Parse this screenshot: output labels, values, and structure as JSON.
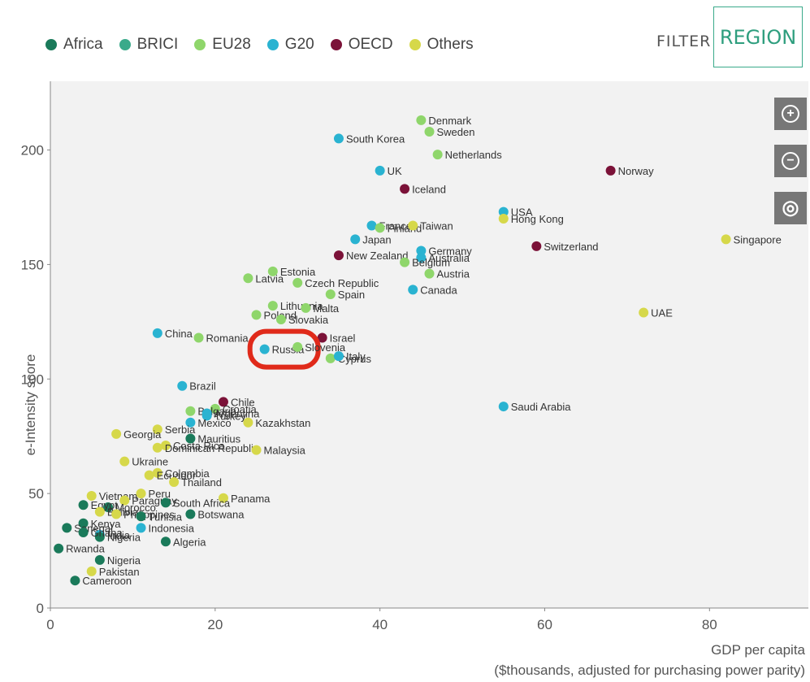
{
  "legend": [
    {
      "label": "Africa",
      "color": "#1a7a5a"
    },
    {
      "label": "BRICI",
      "color": "#3aaa8a"
    },
    {
      "label": "EU28",
      "color": "#8fd66b"
    },
    {
      "label": "G20",
      "color": "#2ab3d1"
    },
    {
      "label": "OECD",
      "color": "#7b1238"
    },
    {
      "label": "Others",
      "color": "#d6d84a"
    }
  ],
  "filter_label": "FILTER",
  "region_button": "REGION",
  "zoom": {
    "in_icon": "+",
    "out_icon": "−",
    "reset_icon": "◎"
  },
  "chart_data": {
    "type": "scatter",
    "xlabel": "GDP per capita",
    "xlabel_note": "($thousands, adjusted for purchasing power parity)",
    "ylabel": "e-Intensity score",
    "xlim": [
      0,
      92
    ],
    "ylim": [
      0,
      230
    ],
    "xticks": [
      0,
      20,
      40,
      60,
      80
    ],
    "yticks": [
      0,
      50,
      100,
      150,
      200
    ],
    "highlight": "Russia",
    "points": [
      {
        "label": "Denmark",
        "x": 45,
        "y": 213,
        "group": "EU28"
      },
      {
        "label": "Sweden",
        "x": 46,
        "y": 208,
        "group": "EU28"
      },
      {
        "label": "South Korea",
        "x": 35,
        "y": 205,
        "group": "G20"
      },
      {
        "label": "Netherlands",
        "x": 47,
        "y": 198,
        "group": "EU28"
      },
      {
        "label": "UK",
        "x": 40,
        "y": 191,
        "group": "G20"
      },
      {
        "label": "Norway",
        "x": 68,
        "y": 191,
        "group": "OECD"
      },
      {
        "label": "Iceland",
        "x": 43,
        "y": 183,
        "group": "OECD"
      },
      {
        "label": "France",
        "x": 39,
        "y": 167,
        "group": "G20"
      },
      {
        "label": "Finland",
        "x": 40,
        "y": 166,
        "group": "EU28"
      },
      {
        "label": "Taiwan",
        "x": 44,
        "y": 167,
        "group": "Others"
      },
      {
        "label": "USA",
        "x": 55,
        "y": 173,
        "group": "G20"
      },
      {
        "label": "Hong Kong",
        "x": 55,
        "y": 170,
        "group": "Others"
      },
      {
        "label": "Japan",
        "x": 37,
        "y": 161,
        "group": "G20"
      },
      {
        "label": "Switzerland",
        "x": 59,
        "y": 158,
        "group": "OECD"
      },
      {
        "label": "Singapore",
        "x": 82,
        "y": 161,
        "group": "Others"
      },
      {
        "label": "New Zealand",
        "x": 35,
        "y": 154,
        "group": "OECD"
      },
      {
        "label": "Germany",
        "x": 45,
        "y": 156,
        "group": "G20"
      },
      {
        "label": "Australia",
        "x": 45,
        "y": 153,
        "group": "G20"
      },
      {
        "label": "Belgium",
        "x": 43,
        "y": 151,
        "group": "EU28"
      },
      {
        "label": "Austria",
        "x": 46,
        "y": 146,
        "group": "EU28"
      },
      {
        "label": "Latvia",
        "x": 24,
        "y": 144,
        "group": "EU28"
      },
      {
        "label": "Estonia",
        "x": 27,
        "y": 147,
        "group": "EU28"
      },
      {
        "label": "Czech Republic",
        "x": 30,
        "y": 142,
        "group": "EU28"
      },
      {
        "label": "Canada",
        "x": 44,
        "y": 139,
        "group": "G20"
      },
      {
        "label": "Spain",
        "x": 34,
        "y": 137,
        "group": "EU28"
      },
      {
        "label": "Lithuania",
        "x": 27,
        "y": 132,
        "group": "EU28"
      },
      {
        "label": "Malta",
        "x": 31,
        "y": 131,
        "group": "EU28"
      },
      {
        "label": "Poland",
        "x": 25,
        "y": 128,
        "group": "EU28"
      },
      {
        "label": "Slovakia",
        "x": 28,
        "y": 126,
        "group": "EU28"
      },
      {
        "label": "UAE",
        "x": 72,
        "y": 129,
        "group": "Others"
      },
      {
        "label": "China",
        "x": 13,
        "y": 120,
        "group": "G20"
      },
      {
        "label": "Romania",
        "x": 18,
        "y": 118,
        "group": "EU28"
      },
      {
        "label": "Israel",
        "x": 33,
        "y": 118,
        "group": "OECD"
      },
      {
        "label": "Russia",
        "x": 26,
        "y": 113,
        "group": "G20"
      },
      {
        "label": "Slovenia",
        "x": 30,
        "y": 114,
        "group": "EU28"
      },
      {
        "label": "Cyprus",
        "x": 34,
        "y": 109,
        "group": "EU28"
      },
      {
        "label": "Italy",
        "x": 35,
        "y": 110,
        "group": "G20"
      },
      {
        "label": "Brazil",
        "x": 16,
        "y": 97,
        "group": "G20"
      },
      {
        "label": "Chile",
        "x": 21,
        "y": 90,
        "group": "OECD"
      },
      {
        "label": "Croatia",
        "x": 20,
        "y": 87,
        "group": "EU28"
      },
      {
        "label": "Saudi Arabia",
        "x": 55,
        "y": 88,
        "group": "G20"
      },
      {
        "label": "Bulgaria",
        "x": 17,
        "y": 86,
        "group": "EU28"
      },
      {
        "label": "Argentina",
        "x": 19,
        "y": 85,
        "group": "G20"
      },
      {
        "label": "Turkey",
        "x": 19,
        "y": 84,
        "group": "G20"
      },
      {
        "label": "Mexico",
        "x": 17,
        "y": 81,
        "group": "G20"
      },
      {
        "label": "Kazakhstan",
        "x": 24,
        "y": 81,
        "group": "Others"
      },
      {
        "label": "Serbia",
        "x": 13,
        "y": 78,
        "group": "Others"
      },
      {
        "label": "Georgia",
        "x": 8,
        "y": 76,
        "group": "Others"
      },
      {
        "label": "Mauritius",
        "x": 17,
        "y": 74,
        "group": "Africa"
      },
      {
        "label": "Costa Rica",
        "x": 14,
        "y": 71,
        "group": "Others"
      },
      {
        "label": "Dominican Republic",
        "x": 13,
        "y": 70,
        "group": "Others"
      },
      {
        "label": "Malaysia",
        "x": 25,
        "y": 69,
        "group": "Others"
      },
      {
        "label": "Ukraine",
        "x": 9,
        "y": 64,
        "group": "Others"
      },
      {
        "label": "Colombia",
        "x": 13,
        "y": 59,
        "group": "Others"
      },
      {
        "label": "Ecuador",
        "x": 12,
        "y": 58,
        "group": "Others"
      },
      {
        "label": "Thailand",
        "x": 15,
        "y": 55,
        "group": "Others"
      },
      {
        "label": "Vietnam",
        "x": 5,
        "y": 49,
        "group": "Others"
      },
      {
        "label": "Peru",
        "x": 11,
        "y": 50,
        "group": "Others"
      },
      {
        "label": "Panama",
        "x": 21,
        "y": 48,
        "group": "Others"
      },
      {
        "label": "Paraguay",
        "x": 9,
        "y": 47,
        "group": "Others"
      },
      {
        "label": "South Africa",
        "x": 14,
        "y": 46,
        "group": "Africa"
      },
      {
        "label": "Morocco",
        "x": 7,
        "y": 44,
        "group": "Africa"
      },
      {
        "label": "Egypt",
        "x": 4,
        "y": 45,
        "group": "Africa"
      },
      {
        "label": "Bolivia",
        "x": 6,
        "y": 42,
        "group": "Others"
      },
      {
        "label": "Philippines",
        "x": 8,
        "y": 41,
        "group": "Others"
      },
      {
        "label": "Tunisia",
        "x": 11,
        "y": 40,
        "group": "Africa"
      },
      {
        "label": "Botswana",
        "x": 17,
        "y": 41,
        "group": "Africa"
      },
      {
        "label": "Kenya",
        "x": 4,
        "y": 37,
        "group": "Africa"
      },
      {
        "label": "Senegal",
        "x": 2,
        "y": 35,
        "group": "Africa"
      },
      {
        "label": "Indonesia",
        "x": 11,
        "y": 35,
        "group": "G20"
      },
      {
        "label": "India",
        "x": 6,
        "y": 32,
        "group": "G20"
      },
      {
        "label": "Nigeria",
        "x": 6,
        "y": 31,
        "group": "Africa"
      },
      {
        "label": "Ghana",
        "x": 4,
        "y": 33,
        "group": "Africa"
      },
      {
        "label": "Algeria",
        "x": 14,
        "y": 29,
        "group": "Africa"
      },
      {
        "label": "Rwanda",
        "x": 1,
        "y": 26,
        "group": "Africa"
      },
      {
        "label": "Nigeria",
        "x": 6,
        "y": 21,
        "group": "Africa"
      },
      {
        "label": "Pakistan",
        "x": 5,
        "y": 16,
        "group": "Others"
      },
      {
        "label": "Cameroon",
        "x": 3,
        "y": 12,
        "group": "Africa"
      }
    ]
  }
}
